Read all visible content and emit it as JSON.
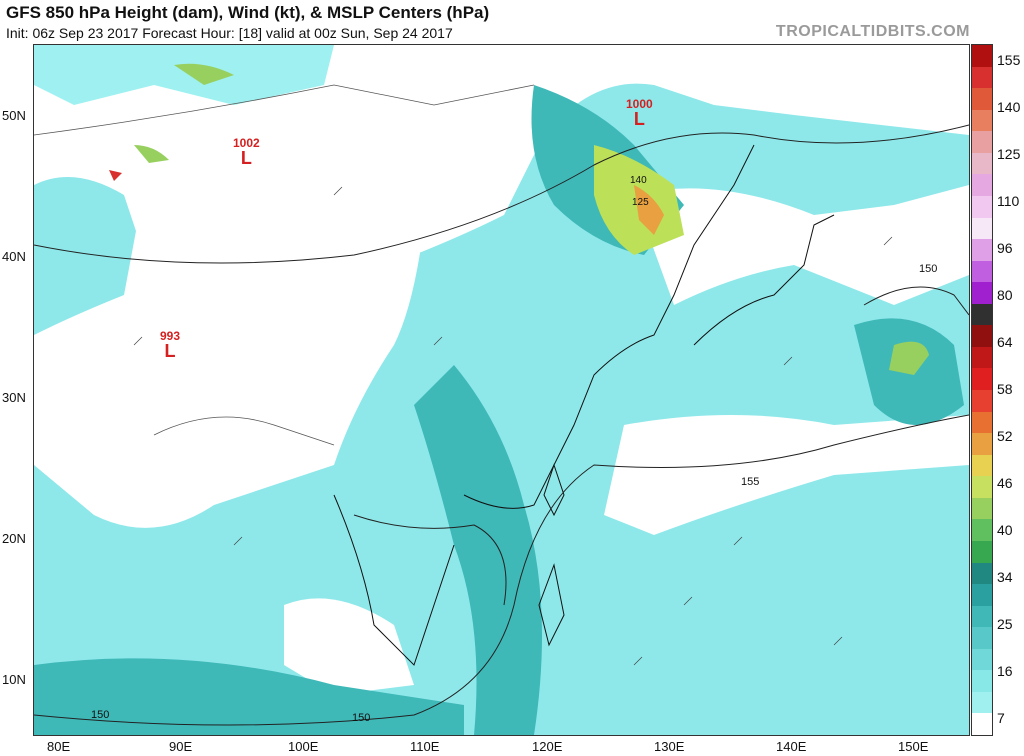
{
  "header": {
    "title": "GFS 850 hPa Height (dam), Wind (kt), & MSLP Centers (hPa)",
    "subtitle": "Init: 06z Sep 23 2017   Forecast Hour: [18]   valid at 00z Sun, Sep 24 2017",
    "brand": "TROPICALTIDBITS.COM"
  },
  "axes": {
    "lat_labels": [
      "50N",
      "40N",
      "30N",
      "20N",
      "10N"
    ],
    "lon_labels": [
      "80E",
      "90E",
      "100E",
      "110E",
      "120E",
      "130E",
      "140E",
      "150E"
    ]
  },
  "colorbar": {
    "labels": [
      "155",
      "140",
      "125",
      "110",
      "96",
      "80",
      "64",
      "58",
      "52",
      "46",
      "40",
      "34",
      "25",
      "16",
      "7"
    ],
    "colors_top_to_bottom": [
      "#b01010",
      "#d82f2f",
      "#e05a3a",
      "#e88060",
      "#e8a0a0",
      "#e8b8c8",
      "#e6a8e0",
      "#f0c8f0",
      "#f6e8f6",
      "#e0a0e8",
      "#c060e0",
      "#a020d0",
      "#303030",
      "#901010",
      "#c01818",
      "#e02020",
      "#e84030",
      "#e87030",
      "#e8a040",
      "#e8d050",
      "#c8e060",
      "#98d060",
      "#60c060",
      "#38a850",
      "#208880",
      "#2aa0a0",
      "#40b8b8",
      "#58c8c8",
      "#70d8d8",
      "#88e8e8",
      "#a0f0f0",
      "#ffffff"
    ]
  },
  "lows": [
    {
      "value": "1002",
      "letter": "L"
    },
    {
      "value": "993",
      "letter": "L"
    },
    {
      "value": "1000",
      "letter": "L"
    }
  ],
  "contour_labels": [
    "150",
    "155",
    "150",
    "150",
    "140",
    "125"
  ]
}
